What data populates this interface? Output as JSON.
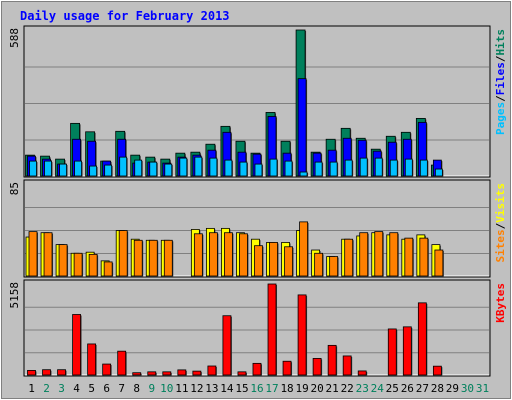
{
  "colors": {
    "background": "#c0c0c0",
    "title": "#0000ff",
    "hits": "#00805c",
    "files": "#0000ff",
    "pages": "#00c0ff",
    "visits": "#ffff00",
    "sites": "#ff8000",
    "kbytes": "#ff0000",
    "weekday_label": "#000000",
    "weekend_label": "#00805c"
  },
  "chart_data": {
    "type": "bar",
    "title": "Daily usage for February 2013",
    "days": [
      "1",
      "2",
      "3",
      "4",
      "5",
      "6",
      "7",
      "8",
      "9",
      "10",
      "11",
      "12",
      "13",
      "14",
      "15",
      "16",
      "17",
      "18",
      "19",
      "20",
      "21",
      "22",
      "23",
      "24",
      "25",
      "26",
      "27",
      "28",
      "29",
      "30",
      "31"
    ],
    "weekend_days": [
      "2",
      "3",
      "9",
      "10",
      "16",
      "17",
      "23",
      "24",
      "30",
      "31"
    ],
    "panels": [
      {
        "id": "hits_files_pages",
        "max_label": "588",
        "ylim": [
          0,
          588
        ],
        "legend": {
          "pages": "Pages",
          "sep1": "/",
          "files": "Files",
          "sep2": "/",
          "hits": "Hits"
        },
        "series": [
          {
            "name": "Hits",
            "values": [
              84,
              80,
              68,
              212,
              178,
              60,
              180,
              84,
              76,
              68,
              92,
              96,
              128,
              200,
              140,
              92,
              256,
              140,
              588,
              96,
              148,
              192,
              152,
              108,
              160,
              176,
              232,
              44,
              0,
              0,
              0
            ]
          },
          {
            "name": "Files",
            "values": [
              80,
              68,
              48,
              148,
              140,
              60,
              148,
              52,
              56,
              52,
              76,
              84,
              104,
              176,
              96,
              88,
              240,
              92,
              392,
              92,
              104,
              152,
              144,
              100,
              136,
              148,
              216,
              64,
              0,
              0,
              0
            ]
          },
          {
            "name": "Pages",
            "values": [
              60,
              60,
              48,
              60,
              40,
              44,
              76,
              64,
              56,
              48,
              72,
              76,
              72,
              64,
              56,
              48,
              68,
              60,
              16,
              56,
              56,
              64,
              72,
              72,
              64,
              68,
              64,
              28,
              0,
              0,
              0
            ]
          }
        ]
      },
      {
        "id": "visits_sites",
        "max_label": "85",
        "ylim": [
          0,
          85
        ],
        "legend": {
          "sites": "Sites",
          "sep1": "/",
          "visits": "Visits"
        },
        "series": [
          {
            "name": "Visits",
            "values": [
              36,
              40,
              29,
              21,
              22,
              14,
              42,
              34,
              33,
              33,
              0,
              43,
              44,
              44,
              40,
              34,
              31,
              31,
              42,
              24,
              18,
              34,
              37,
              40,
              38,
              34,
              38,
              29,
              0,
              0,
              0
            ]
          },
          {
            "name": "Sites",
            "values": [
              41,
              40,
              29,
              21,
              20,
              13,
              42,
              33,
              33,
              33,
              0,
              39,
              40,
              40,
              39,
              28,
              31,
              27,
              50,
              21,
              18,
              34,
              40,
              41,
              40,
              35,
              35,
              24,
              0,
              0,
              0
            ]
          }
        ]
      },
      {
        "id": "kbytes",
        "max_label": "5158",
        "ylim": [
          0,
          5158
        ],
        "legend": {
          "kbytes": "KBytes"
        },
        "series": [
          {
            "name": "KBytes",
            "values": [
              260,
              300,
              300,
              3430,
              1760,
              620,
              1350,
              130,
              180,
              180,
              290,
              220,
              510,
              3360,
              180,
              660,
              5158,
              780,
              4540,
              940,
              1680,
              1080,
              230,
              0,
              2610,
              2730,
              4090,
              500,
              0,
              0,
              0
            ]
          }
        ]
      }
    ]
  }
}
